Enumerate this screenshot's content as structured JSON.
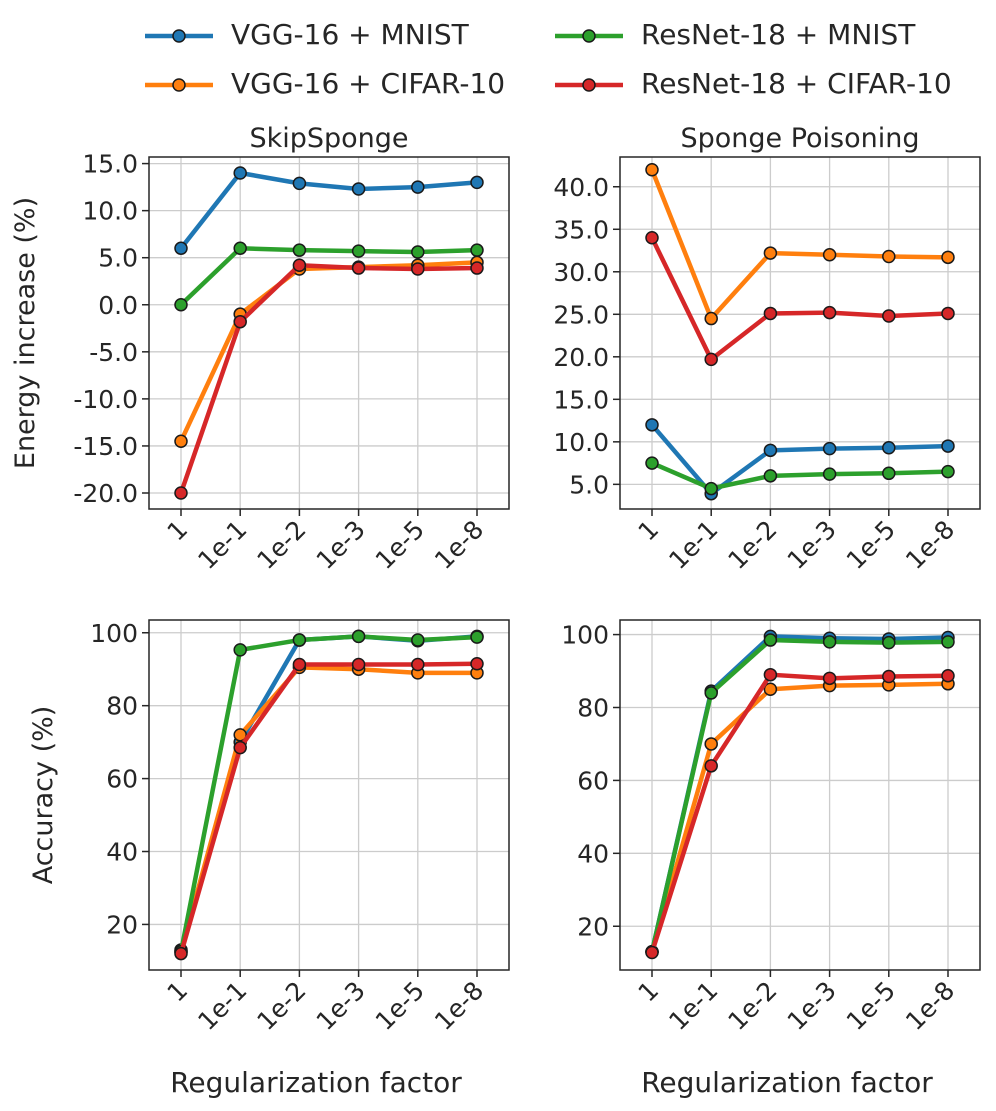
{
  "colors": {
    "VGG-16 + MNIST": "#1f77b4",
    "VGG-16 + CIFAR-10": "#ff7f0e",
    "ResNet-18 + MNIST": "#2ca02c",
    "ResNet-18 + CIFAR-10": "#d62728",
    "grid": "#cccccc",
    "axis": "#262626"
  },
  "legend": {
    "entries": [
      {
        "label": "VGG-16 + MNIST"
      },
      {
        "label": "ResNet-18 + MNIST"
      },
      {
        "label": "VGG-16 + CIFAR-10"
      },
      {
        "label": "ResNet-18 + CIFAR-10"
      }
    ]
  },
  "chart_data": [
    {
      "type": "line",
      "title": "SkipSponge",
      "xlabel": "",
      "ylabel": "Energy increase (%)",
      "categories": [
        "1",
        "1e-1",
        "1e-2",
        "1e-3",
        "1e-5",
        "1e-8"
      ],
      "ylim": [
        -21.7,
        15.7
      ],
      "yticks": [
        -20,
        -15,
        -10,
        -5,
        0,
        5,
        10,
        15
      ],
      "ytick_labels": [
        "-20.0",
        "-15.0",
        "-10.0",
        "-5.0",
        "0.0",
        "5.0",
        "10.0",
        "15.0"
      ],
      "series": [
        {
          "name": "VGG-16 + MNIST",
          "values": [
            6.0,
            14.0,
            12.9,
            12.3,
            12.5,
            13.0
          ]
        },
        {
          "name": "VGG-16 + CIFAR-10",
          "values": [
            -14.5,
            -1.0,
            3.8,
            4.0,
            4.2,
            4.5
          ]
        },
        {
          "name": "ResNet-18 + MNIST",
          "values": [
            0.0,
            6.0,
            5.8,
            5.7,
            5.6,
            5.8
          ]
        },
        {
          "name": "ResNet-18 + CIFAR-10",
          "values": [
            -20.0,
            -1.8,
            4.2,
            3.9,
            3.8,
            3.9
          ]
        }
      ]
    },
    {
      "type": "line",
      "title": "Sponge Poisoning",
      "xlabel": "",
      "ylabel": "",
      "categories": [
        "1",
        "1e-1",
        "1e-2",
        "1e-3",
        "1e-5",
        "1e-8"
      ],
      "ylim": [
        2.1,
        43.5
      ],
      "yticks": [
        5,
        10,
        15,
        20,
        25,
        30,
        35,
        40
      ],
      "ytick_labels": [
        "5.0",
        "10.0",
        "15.0",
        "20.0",
        "25.0",
        "30.0",
        "35.0",
        "40.0"
      ],
      "series": [
        {
          "name": "VGG-16 + MNIST",
          "values": [
            12.0,
            3.9,
            9.0,
            9.2,
            9.3,
            9.5
          ]
        },
        {
          "name": "VGG-16 + CIFAR-10",
          "values": [
            42.0,
            24.5,
            32.2,
            32.0,
            31.8,
            31.7
          ]
        },
        {
          "name": "ResNet-18 + MNIST",
          "values": [
            7.5,
            4.5,
            6.0,
            6.2,
            6.3,
            6.5
          ]
        },
        {
          "name": "ResNet-18 + CIFAR-10",
          "values": [
            34.0,
            19.7,
            25.1,
            25.2,
            24.8,
            25.1
          ]
        }
      ]
    },
    {
      "type": "line",
      "title": "",
      "xlabel": "Regularization factor",
      "ylabel": "Accuracy (%)",
      "categories": [
        "1",
        "1e-1",
        "1e-2",
        "1e-3",
        "1e-5",
        "1e-8"
      ],
      "ylim": [
        7.5,
        103.5
      ],
      "yticks": [
        20,
        40,
        60,
        80,
        100
      ],
      "ytick_labels": [
        "20",
        "40",
        "60",
        "80",
        "100"
      ],
      "series": [
        {
          "name": "VGG-16 + MNIST",
          "values": [
            13.0,
            70.0,
            98.0,
            99.0,
            97.8,
            99.0
          ]
        },
        {
          "name": "VGG-16 + CIFAR-10",
          "values": [
            12.5,
            72.0,
            90.5,
            90.0,
            89.0,
            89.0
          ]
        },
        {
          "name": "ResNet-18 + MNIST",
          "values": [
            12.5,
            95.3,
            98.0,
            99.0,
            98.0,
            98.8
          ]
        },
        {
          "name": "ResNet-18 + CIFAR-10",
          "values": [
            12.0,
            68.5,
            91.3,
            91.3,
            91.3,
            91.5
          ]
        }
      ]
    },
    {
      "type": "line",
      "title": "",
      "xlabel": "Regularization factor",
      "ylabel": "",
      "categories": [
        "1",
        "1e-1",
        "1e-2",
        "1e-3",
        "1e-5",
        "1e-8"
      ],
      "ylim": [
        8.0,
        104.0
      ],
      "yticks": [
        20,
        40,
        60,
        80,
        100
      ],
      "ytick_labels": [
        "20",
        "40",
        "60",
        "80",
        "100"
      ],
      "series": [
        {
          "name": "VGG-16 + MNIST",
          "values": [
            13.0,
            84.5,
            99.5,
            99.0,
            98.8,
            99.2
          ]
        },
        {
          "name": "VGG-16 + CIFAR-10",
          "values": [
            13.0,
            70.0,
            85.0,
            86.0,
            86.2,
            86.5
          ]
        },
        {
          "name": "ResNet-18 + MNIST",
          "values": [
            13.0,
            84.0,
            98.5,
            98.0,
            97.8,
            98.0
          ]
        },
        {
          "name": "ResNet-18 + CIFAR-10",
          "values": [
            12.8,
            64.0,
            89.0,
            88.0,
            88.5,
            88.7
          ]
        }
      ]
    }
  ]
}
